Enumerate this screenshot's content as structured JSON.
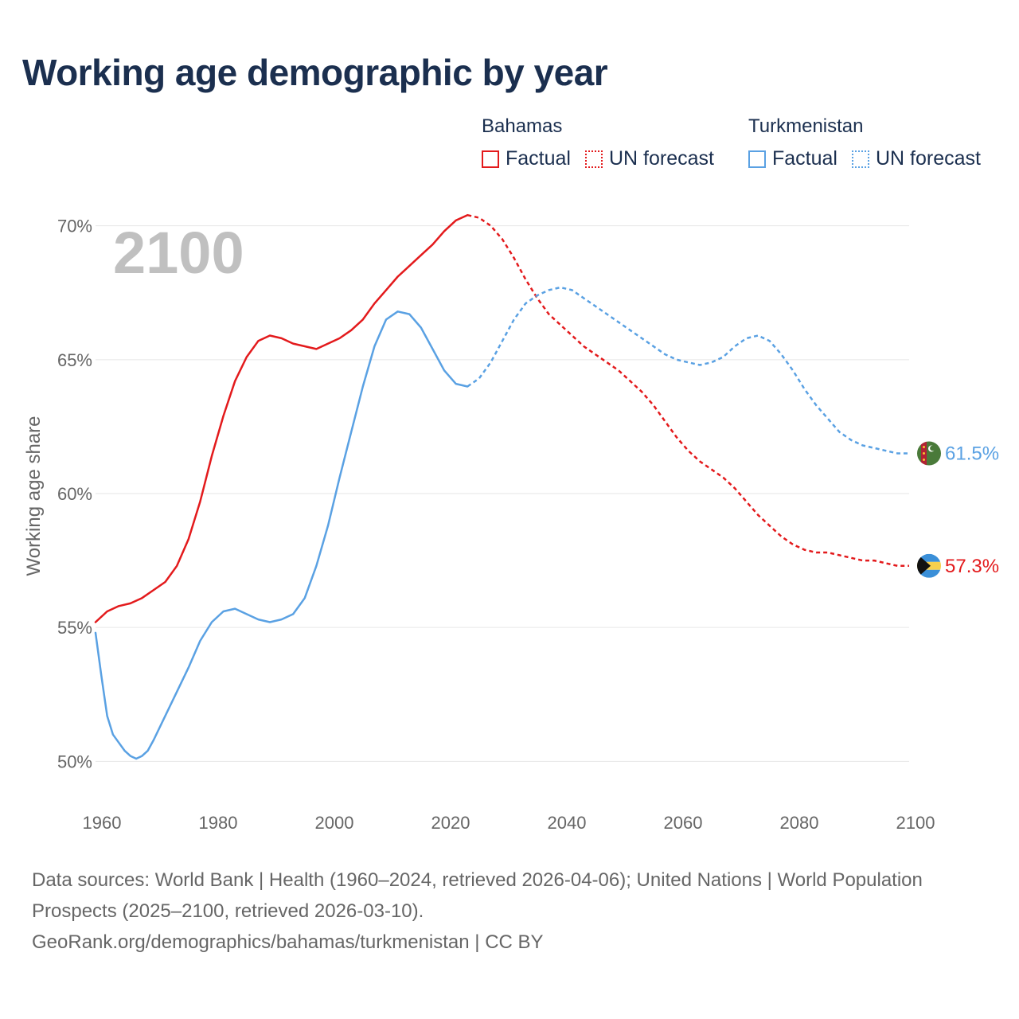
{
  "title": "Working age demographic by year",
  "legend": {
    "groups": [
      {
        "country": "Bahamas",
        "color": "#e31a1c",
        "factual_label": "Factual",
        "forecast_label": "UN forecast"
      },
      {
        "country": "Turkmenistan",
        "color": "#5aa1e3",
        "factual_label": "Factual",
        "forecast_label": "UN forecast"
      }
    ]
  },
  "chart_data": {
    "type": "line",
    "title": "Working age demographic by year",
    "ylabel": "Working age share",
    "xlabel": "",
    "year_label": "2100",
    "xlim": [
      1960,
      2100
    ],
    "ylim": [
      49,
      71
    ],
    "x_ticks": [
      1960,
      1980,
      2000,
      2020,
      2040,
      2060,
      2080,
      2100
    ],
    "y_ticks": [
      50,
      55,
      60,
      65,
      70
    ],
    "y_tick_labels": [
      "50%",
      "55%",
      "60%",
      "65%",
      "70%"
    ],
    "gridlines": true,
    "factual_end_year": 2024,
    "series": [
      {
        "name": "Bahamas",
        "color": "#e31a1c",
        "end_label": "57.3%",
        "factual": {
          "x": [
            1960,
            1962,
            1964,
            1966,
            1968,
            1970,
            1972,
            1974,
            1976,
            1978,
            1980,
            1982,
            1984,
            1986,
            1988,
            1990,
            1992,
            1994,
            1996,
            1998,
            2000,
            2002,
            2004,
            2006,
            2008,
            2010,
            2012,
            2014,
            2016,
            2018,
            2020,
            2022,
            2024
          ],
          "y": [
            55.2,
            55.6,
            55.8,
            55.9,
            56.1,
            56.4,
            56.7,
            57.3,
            58.3,
            59.7,
            61.4,
            62.9,
            64.2,
            65.1,
            65.7,
            65.9,
            65.8,
            65.6,
            65.5,
            65.4,
            65.6,
            65.8,
            66.1,
            66.5,
            67.1,
            67.6,
            68.1,
            68.5,
            68.9,
            69.3,
            69.8,
            70.2,
            70.4
          ]
        },
        "forecast": {
          "x": [
            2024,
            2026,
            2028,
            2030,
            2032,
            2034,
            2036,
            2038,
            2040,
            2042,
            2044,
            2046,
            2048,
            2050,
            2052,
            2054,
            2056,
            2058,
            2060,
            2062,
            2064,
            2066,
            2068,
            2070,
            2072,
            2074,
            2076,
            2078,
            2080,
            2082,
            2084,
            2086,
            2088,
            2090,
            2092,
            2094,
            2096,
            2098,
            2100
          ],
          "y": [
            70.4,
            70.3,
            70.0,
            69.5,
            68.8,
            68.0,
            67.3,
            66.7,
            66.3,
            65.9,
            65.5,
            65.2,
            64.9,
            64.6,
            64.2,
            63.8,
            63.3,
            62.7,
            62.1,
            61.6,
            61.2,
            60.9,
            60.6,
            60.2,
            59.7,
            59.2,
            58.8,
            58.4,
            58.1,
            57.9,
            57.8,
            57.8,
            57.7,
            57.6,
            57.5,
            57.5,
            57.4,
            57.3,
            57.3
          ]
        }
      },
      {
        "name": "Turkmenistan",
        "color": "#5aa1e3",
        "end_label": "61.5%",
        "factual": {
          "x": [
            1960,
            1961,
            1962,
            1963,
            1964,
            1965,
            1966,
            1967,
            1968,
            1969,
            1970,
            1972,
            1974,
            1976,
            1978,
            1980,
            1982,
            1984,
            1986,
            1988,
            1990,
            1992,
            1994,
            1996,
            1998,
            2000,
            2002,
            2004,
            2006,
            2008,
            2010,
            2012,
            2014,
            2016,
            2018,
            2020,
            2022,
            2024
          ],
          "y": [
            54.8,
            53.2,
            51.7,
            51.0,
            50.7,
            50.4,
            50.2,
            50.1,
            50.2,
            50.4,
            50.8,
            51.7,
            52.6,
            53.5,
            54.5,
            55.2,
            55.6,
            55.7,
            55.5,
            55.3,
            55.2,
            55.3,
            55.5,
            56.1,
            57.3,
            58.8,
            60.6,
            62.3,
            64.0,
            65.5,
            66.5,
            66.8,
            66.7,
            66.2,
            65.4,
            64.6,
            64.1,
            64.0
          ]
        },
        "forecast": {
          "x": [
            2024,
            2026,
            2028,
            2030,
            2032,
            2034,
            2036,
            2038,
            2040,
            2042,
            2044,
            2046,
            2048,
            2050,
            2052,
            2054,
            2056,
            2058,
            2060,
            2062,
            2064,
            2066,
            2068,
            2070,
            2072,
            2074,
            2076,
            2078,
            2080,
            2082,
            2084,
            2086,
            2088,
            2090,
            2092,
            2094,
            2096,
            2098,
            2100
          ],
          "y": [
            64.0,
            64.3,
            64.9,
            65.7,
            66.5,
            67.1,
            67.4,
            67.6,
            67.7,
            67.6,
            67.3,
            67.0,
            66.7,
            66.4,
            66.1,
            65.8,
            65.5,
            65.2,
            65.0,
            64.9,
            64.8,
            64.9,
            65.1,
            65.5,
            65.8,
            65.9,
            65.7,
            65.2,
            64.6,
            63.9,
            63.3,
            62.8,
            62.3,
            62.0,
            61.8,
            61.7,
            61.6,
            61.5,
            61.5
          ]
        }
      }
    ]
  },
  "footer": {
    "sources": "Data sources: World Bank | Health (1960–2024, retrieved 2026-04-06); United Nations | World Population Prospects (2025–2100, retrieved 2026-03-10).",
    "attribution": "GeoRank.org/demographics/bahamas/turkmenistan | CC BY"
  }
}
